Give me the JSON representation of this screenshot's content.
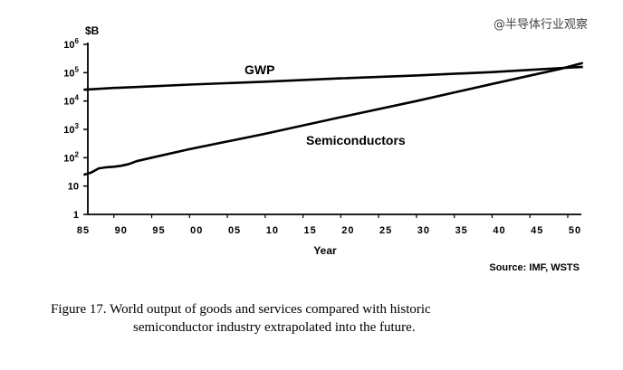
{
  "watermark": "@半导体行业观察",
  "source": "Source: IMF, WSTS",
  "caption": {
    "line1": "Figure 17.  World output of goods and services compared with historic",
    "line2": "semiconductor industry extrapolated into the future."
  },
  "chart_data": {
    "type": "line",
    "title": "",
    "xlabel": "Year",
    "ylabel": "$B",
    "yscale": "log",
    "ylim": [
      1,
      1000000
    ],
    "xlim": [
      1985,
      2052
    ],
    "grid": false,
    "legend": "none",
    "x_ticks": [
      {
        "year": 1985,
        "label": "85"
      },
      {
        "year": 1990,
        "label": "90"
      },
      {
        "year": 1995,
        "label": "95"
      },
      {
        "year": 2000,
        "label": "00"
      },
      {
        "year": 2005,
        "label": "05"
      },
      {
        "year": 2010,
        "label": "10"
      },
      {
        "year": 2015,
        "label": "15"
      },
      {
        "year": 2020,
        "label": "20"
      },
      {
        "year": 2025,
        "label": "25"
      },
      {
        "year": 2030,
        "label": "30"
      },
      {
        "year": 2035,
        "label": "35"
      },
      {
        "year": 2040,
        "label": "40"
      },
      {
        "year": 2045,
        "label": "45"
      },
      {
        "year": 2050,
        "label": "50"
      }
    ],
    "y_ticks": [
      {
        "value": 1,
        "base": "1",
        "exp": ""
      },
      {
        "value": 10,
        "base": "10",
        "exp": ""
      },
      {
        "value": 100,
        "base": "10",
        "exp": "2"
      },
      {
        "value": 1000,
        "base": "10",
        "exp": "3"
      },
      {
        "value": 10000,
        "base": "10",
        "exp": "4"
      },
      {
        "value": 100000,
        "base": "10",
        "exp": "5"
      },
      {
        "value": 1000000,
        "base": "10",
        "exp": "6"
      }
    ],
    "series": [
      {
        "name": "GWP",
        "x": [
          1986,
          1990,
          1995,
          2000,
          2010,
          2020,
          2030,
          2040,
          2052
        ],
        "y": [
          25000,
          29000,
          33000,
          38000,
          48000,
          63000,
          80000,
          105000,
          160000
        ]
      },
      {
        "name": "Semiconductors",
        "x": [
          1986,
          1987,
          1988,
          1989,
          1990,
          1991,
          1992,
          1993,
          1995,
          2000,
          2010,
          2020,
          2030,
          2040,
          2049,
          2052
        ],
        "y": [
          25,
          30,
          42,
          46,
          48,
          52,
          60,
          75,
          100,
          200,
          700,
          2700,
          10000,
          40000,
          135000,
          220000
        ]
      }
    ]
  }
}
